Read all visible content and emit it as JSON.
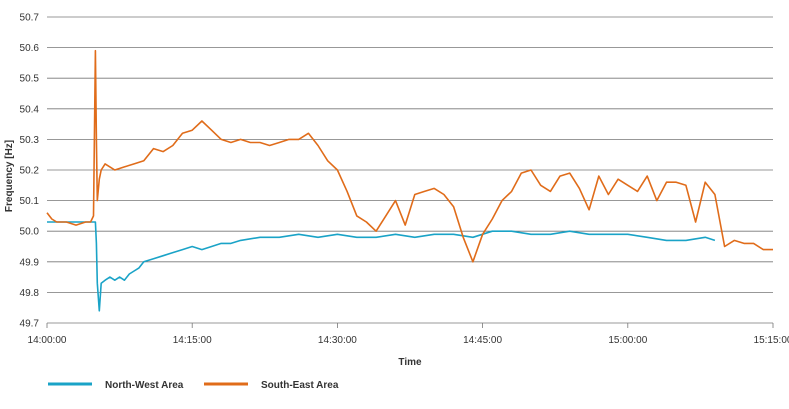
{
  "chart_data": {
    "type": "line",
    "xlabel": "Time",
    "ylabel": "Frequency [Hz]",
    "ylim": [
      49.7,
      50.7
    ],
    "y_ticks": [
      49.7,
      49.8,
      49.9,
      50.0,
      50.1,
      50.2,
      50.3,
      50.4,
      50.5,
      50.6,
      50.7
    ],
    "y_tick_labels": [
      "49.7",
      "49.8",
      "49.9",
      "50.0",
      "50.1",
      "50.2",
      "50.3",
      "50.4",
      "50.5",
      "50.6",
      "50.7"
    ],
    "x_range": [
      "14:00:00",
      "15:15:00"
    ],
    "x_ticks": [
      "14:00:00",
      "14:15:00",
      "14:30:00",
      "14:45:00",
      "15:00:00",
      "15:15:00"
    ],
    "grid": "horizontal",
    "legend_position": "bottom-left",
    "series": [
      {
        "name": "North-West Area",
        "color": "#1aa3c7",
        "x": [
          "14:00:00",
          "14:05:00",
          "14:05:06",
          "14:05:12",
          "14:05:24",
          "14:05:36",
          "14:06:00",
          "14:06:30",
          "14:07:00",
          "14:07:30",
          "14:08:00",
          "14:08:30",
          "14:09:00",
          "14:09:30",
          "14:10:00",
          "14:11:00",
          "14:12:00",
          "14:13:00",
          "14:14:00",
          "14:15:00",
          "14:16:00",
          "14:17:00",
          "14:18:00",
          "14:19:00",
          "14:20:00",
          "14:22:00",
          "14:24:00",
          "14:26:00",
          "14:28:00",
          "14:30:00",
          "14:32:00",
          "14:34:00",
          "14:36:00",
          "14:38:00",
          "14:40:00",
          "14:42:00",
          "14:44:00",
          "14:46:00",
          "14:48:00",
          "14:50:00",
          "14:52:00",
          "14:54:00",
          "14:56:00",
          "14:58:00",
          "15:00:00",
          "15:02:00",
          "15:04:00",
          "15:06:00",
          "15:08:00",
          "15:09:00"
        ],
        "values": [
          50.03,
          50.03,
          49.96,
          49.83,
          49.74,
          49.83,
          49.84,
          49.85,
          49.84,
          49.85,
          49.84,
          49.86,
          49.87,
          49.88,
          49.9,
          49.91,
          49.92,
          49.93,
          49.94,
          49.95,
          49.94,
          49.95,
          49.96,
          49.96,
          49.97,
          49.98,
          49.98,
          49.99,
          49.98,
          49.99,
          49.98,
          49.98,
          49.99,
          49.98,
          49.99,
          49.99,
          49.98,
          50.0,
          50.0,
          49.99,
          49.99,
          50.0,
          49.99,
          49.99,
          49.99,
          49.98,
          49.97,
          49.97,
          49.98,
          49.97
        ]
      },
      {
        "name": "South-East Area",
        "color": "#e06c1a",
        "x": [
          "14:00:00",
          "14:00:30",
          "14:01:00",
          "14:02:00",
          "14:03:00",
          "14:04:00",
          "14:04:30",
          "14:04:48",
          "14:05:00",
          "14:05:06",
          "14:05:12",
          "14:05:24",
          "14:05:36",
          "14:06:00",
          "14:06:30",
          "14:07:00",
          "14:08:00",
          "14:09:00",
          "14:10:00",
          "14:11:00",
          "14:12:00",
          "14:13:00",
          "14:14:00",
          "14:15:00",
          "14:16:00",
          "14:17:00",
          "14:18:00",
          "14:19:00",
          "14:20:00",
          "14:21:00",
          "14:22:00",
          "14:23:00",
          "14:24:00",
          "14:25:00",
          "14:26:00",
          "14:27:00",
          "14:28:00",
          "14:29:00",
          "14:30:00",
          "14:31:00",
          "14:32:00",
          "14:33:00",
          "14:34:00",
          "14:35:00",
          "14:36:00",
          "14:37:00",
          "14:38:00",
          "14:39:00",
          "14:40:00",
          "14:41:00",
          "14:42:00",
          "14:43:00",
          "14:44:00",
          "14:45:00",
          "14:46:00",
          "14:47:00",
          "14:48:00",
          "14:49:00",
          "14:50:00",
          "14:51:00",
          "14:52:00",
          "14:53:00",
          "14:54:00",
          "14:55:00",
          "14:56:00",
          "14:57:00",
          "14:58:00",
          "14:59:00",
          "15:00:00",
          "15:01:00",
          "15:02:00",
          "15:03:00",
          "15:04:00",
          "15:05:00",
          "15:06:00",
          "15:07:00",
          "15:08:00",
          "15:09:00",
          "15:10:00",
          "15:11:00",
          "15:12:00",
          "15:13:00",
          "15:14:00",
          "15:15:00"
        ],
        "values": [
          50.06,
          50.04,
          50.03,
          50.03,
          50.02,
          50.03,
          50.03,
          50.05,
          50.59,
          50.3,
          50.1,
          50.17,
          50.2,
          50.22,
          50.21,
          50.2,
          50.21,
          50.22,
          50.23,
          50.27,
          50.26,
          50.28,
          50.32,
          50.33,
          50.36,
          50.33,
          50.3,
          50.29,
          50.3,
          50.29,
          50.29,
          50.28,
          50.29,
          50.3,
          50.3,
          50.32,
          50.28,
          50.23,
          50.2,
          50.13,
          50.05,
          50.03,
          50.0,
          50.05,
          50.1,
          50.02,
          50.12,
          50.13,
          50.14,
          50.12,
          50.08,
          49.98,
          49.9,
          49.99,
          50.04,
          50.1,
          50.13,
          50.19,
          50.2,
          50.15,
          50.13,
          50.18,
          50.19,
          50.14,
          50.07,
          50.18,
          50.12,
          50.17,
          50.15,
          50.13,
          50.18,
          50.1,
          50.16,
          50.16,
          50.15,
          50.03,
          50.16,
          50.12,
          49.95,
          49.97,
          49.96,
          49.96,
          49.94,
          49.94
        ]
      }
    ]
  }
}
